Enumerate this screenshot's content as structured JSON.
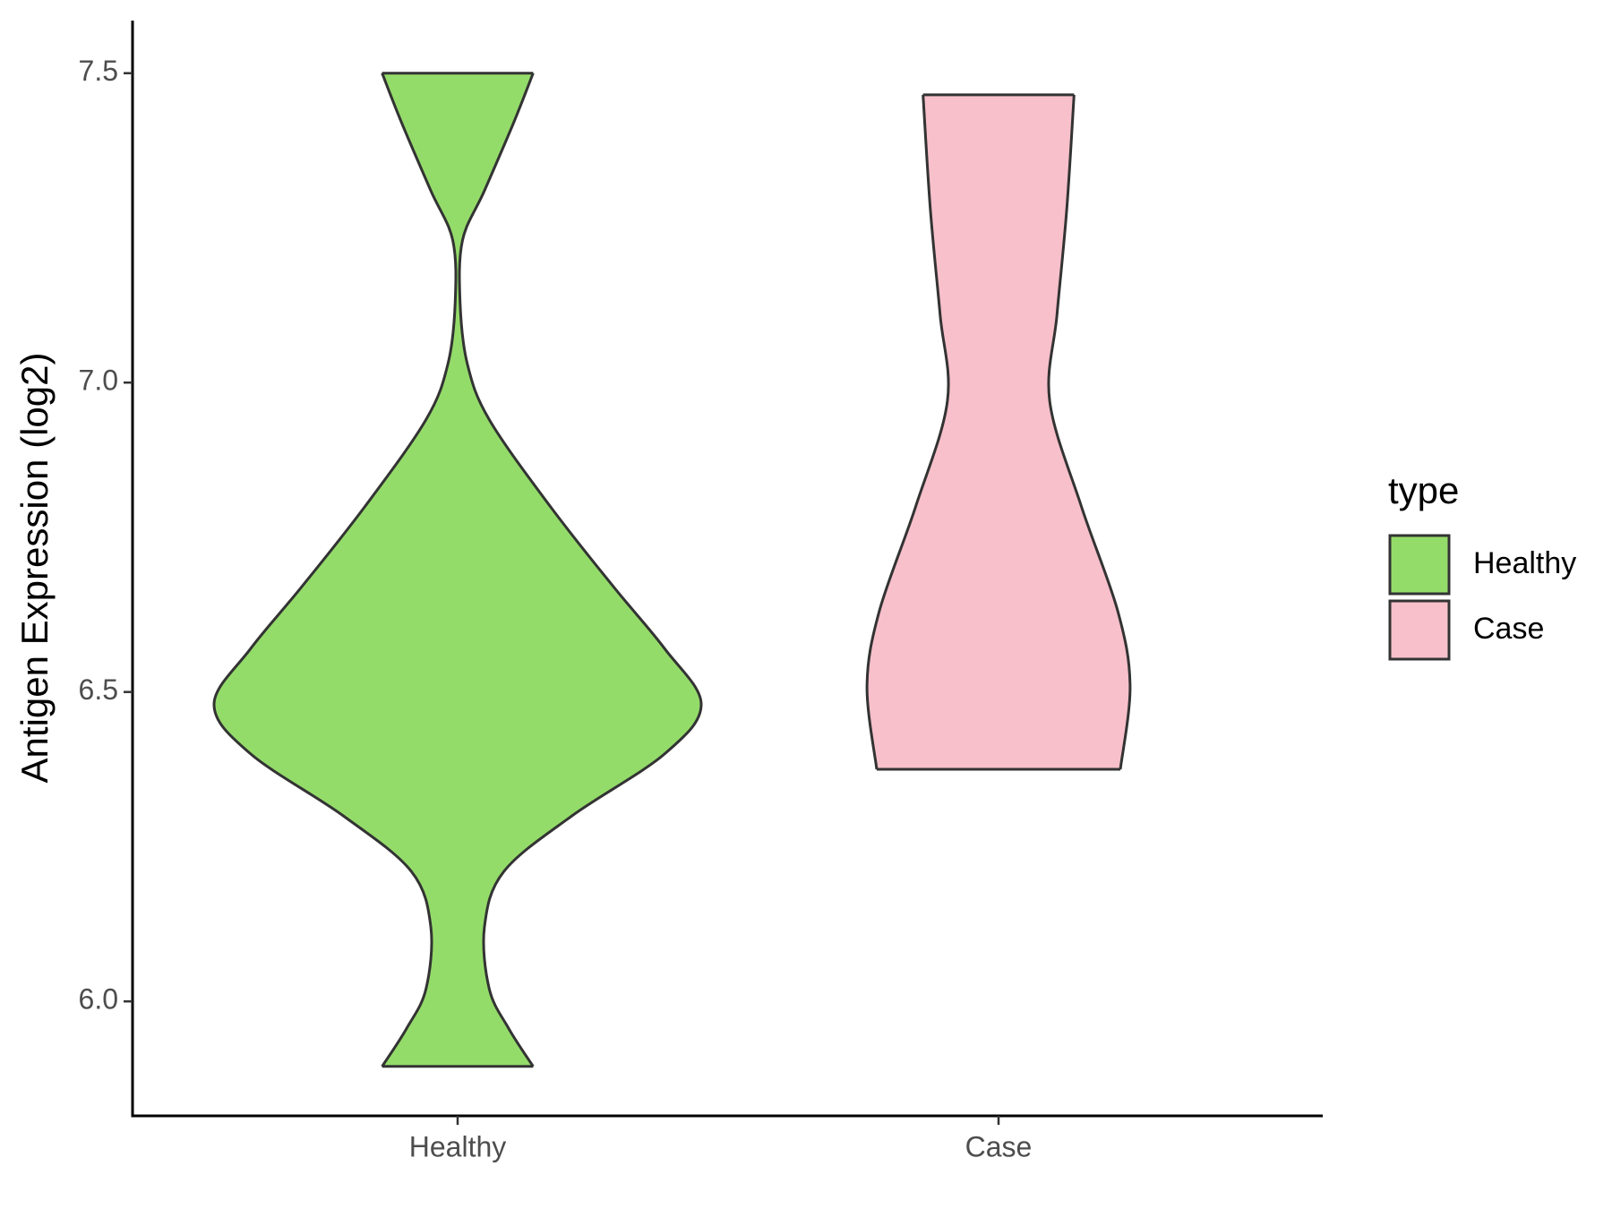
{
  "chart_data": {
    "type": "violin",
    "y_label": "Antigen Expression (log2)",
    "legend_title": "type",
    "legend_position": "right",
    "categories": [
      "Healthy",
      "Case"
    ],
    "series": [
      {
        "name": "Healthy",
        "color": "#94dc6a",
        "y": [
          5.895,
          5.956,
          6.02,
          6.12,
          6.21,
          6.3,
          6.4,
          6.48,
          6.57,
          6.67,
          6.8,
          6.94,
          7.03,
          7.13,
          7.23,
          7.31,
          7.42,
          7.5
        ],
        "width": [
          0.31,
          0.21,
          0.13,
          0.11,
          0.19,
          0.47,
          0.85,
          1.0,
          0.85,
          0.64,
          0.38,
          0.13,
          0.04,
          0.01,
          0.02,
          0.11,
          0.23,
          0.31
        ]
      },
      {
        "name": "Case",
        "color": "#f7c0cb",
        "y": [
          6.375,
          6.51,
          6.63,
          6.8,
          6.97,
          7.11,
          7.28,
          7.465
        ],
        "width": [
          0.5,
          0.54,
          0.49,
          0.34,
          0.21,
          0.24,
          0.28,
          0.31
        ]
      }
    ],
    "ylim": [
      5.815,
      7.585
    ],
    "yticks": [
      {
        "value": 6.0,
        "label": "6.0"
      },
      6.5,
      {
        "value": 7.0,
        "label": "7.0"
      },
      7.5
    ]
  }
}
